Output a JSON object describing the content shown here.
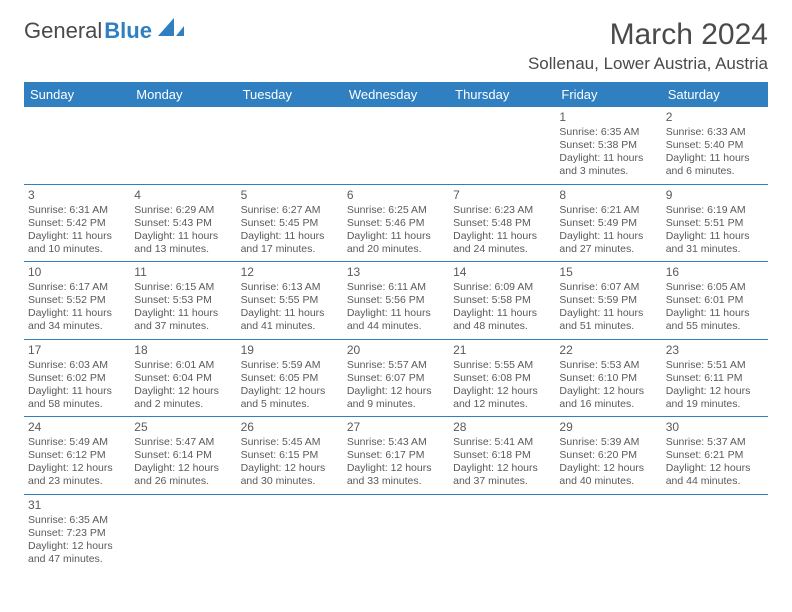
{
  "logo": {
    "text1": "General",
    "text2": "Blue"
  },
  "title": "March 2024",
  "location": "Sollenau, Lower Austria, Austria",
  "colors": {
    "header_bg": "#2f7fc1",
    "header_text": "#ffffff",
    "border": "#2f7fc1",
    "body_text": "#5a5a5a",
    "page_bg": "#ffffff"
  },
  "weekdays": [
    "Sunday",
    "Monday",
    "Tuesday",
    "Wednesday",
    "Thursday",
    "Friday",
    "Saturday"
  ],
  "weeks": [
    [
      null,
      null,
      null,
      null,
      null,
      {
        "day": "1",
        "sunrise": "Sunrise: 6:35 AM",
        "sunset": "Sunset: 5:38 PM",
        "dl1": "Daylight: 11 hours",
        "dl2": "and 3 minutes."
      },
      {
        "day": "2",
        "sunrise": "Sunrise: 6:33 AM",
        "sunset": "Sunset: 5:40 PM",
        "dl1": "Daylight: 11 hours",
        "dl2": "and 6 minutes."
      }
    ],
    [
      {
        "day": "3",
        "sunrise": "Sunrise: 6:31 AM",
        "sunset": "Sunset: 5:42 PM",
        "dl1": "Daylight: 11 hours",
        "dl2": "and 10 minutes."
      },
      {
        "day": "4",
        "sunrise": "Sunrise: 6:29 AM",
        "sunset": "Sunset: 5:43 PM",
        "dl1": "Daylight: 11 hours",
        "dl2": "and 13 minutes."
      },
      {
        "day": "5",
        "sunrise": "Sunrise: 6:27 AM",
        "sunset": "Sunset: 5:45 PM",
        "dl1": "Daylight: 11 hours",
        "dl2": "and 17 minutes."
      },
      {
        "day": "6",
        "sunrise": "Sunrise: 6:25 AM",
        "sunset": "Sunset: 5:46 PM",
        "dl1": "Daylight: 11 hours",
        "dl2": "and 20 minutes."
      },
      {
        "day": "7",
        "sunrise": "Sunrise: 6:23 AM",
        "sunset": "Sunset: 5:48 PM",
        "dl1": "Daylight: 11 hours",
        "dl2": "and 24 minutes."
      },
      {
        "day": "8",
        "sunrise": "Sunrise: 6:21 AM",
        "sunset": "Sunset: 5:49 PM",
        "dl1": "Daylight: 11 hours",
        "dl2": "and 27 minutes."
      },
      {
        "day": "9",
        "sunrise": "Sunrise: 6:19 AM",
        "sunset": "Sunset: 5:51 PM",
        "dl1": "Daylight: 11 hours",
        "dl2": "and 31 minutes."
      }
    ],
    [
      {
        "day": "10",
        "sunrise": "Sunrise: 6:17 AM",
        "sunset": "Sunset: 5:52 PM",
        "dl1": "Daylight: 11 hours",
        "dl2": "and 34 minutes."
      },
      {
        "day": "11",
        "sunrise": "Sunrise: 6:15 AM",
        "sunset": "Sunset: 5:53 PM",
        "dl1": "Daylight: 11 hours",
        "dl2": "and 37 minutes."
      },
      {
        "day": "12",
        "sunrise": "Sunrise: 6:13 AM",
        "sunset": "Sunset: 5:55 PM",
        "dl1": "Daylight: 11 hours",
        "dl2": "and 41 minutes."
      },
      {
        "day": "13",
        "sunrise": "Sunrise: 6:11 AM",
        "sunset": "Sunset: 5:56 PM",
        "dl1": "Daylight: 11 hours",
        "dl2": "and 44 minutes."
      },
      {
        "day": "14",
        "sunrise": "Sunrise: 6:09 AM",
        "sunset": "Sunset: 5:58 PM",
        "dl1": "Daylight: 11 hours",
        "dl2": "and 48 minutes."
      },
      {
        "day": "15",
        "sunrise": "Sunrise: 6:07 AM",
        "sunset": "Sunset: 5:59 PM",
        "dl1": "Daylight: 11 hours",
        "dl2": "and 51 minutes."
      },
      {
        "day": "16",
        "sunrise": "Sunrise: 6:05 AM",
        "sunset": "Sunset: 6:01 PM",
        "dl1": "Daylight: 11 hours",
        "dl2": "and 55 minutes."
      }
    ],
    [
      {
        "day": "17",
        "sunrise": "Sunrise: 6:03 AM",
        "sunset": "Sunset: 6:02 PM",
        "dl1": "Daylight: 11 hours",
        "dl2": "and 58 minutes."
      },
      {
        "day": "18",
        "sunrise": "Sunrise: 6:01 AM",
        "sunset": "Sunset: 6:04 PM",
        "dl1": "Daylight: 12 hours",
        "dl2": "and 2 minutes."
      },
      {
        "day": "19",
        "sunrise": "Sunrise: 5:59 AM",
        "sunset": "Sunset: 6:05 PM",
        "dl1": "Daylight: 12 hours",
        "dl2": "and 5 minutes."
      },
      {
        "day": "20",
        "sunrise": "Sunrise: 5:57 AM",
        "sunset": "Sunset: 6:07 PM",
        "dl1": "Daylight: 12 hours",
        "dl2": "and 9 minutes."
      },
      {
        "day": "21",
        "sunrise": "Sunrise: 5:55 AM",
        "sunset": "Sunset: 6:08 PM",
        "dl1": "Daylight: 12 hours",
        "dl2": "and 12 minutes."
      },
      {
        "day": "22",
        "sunrise": "Sunrise: 5:53 AM",
        "sunset": "Sunset: 6:10 PM",
        "dl1": "Daylight: 12 hours",
        "dl2": "and 16 minutes."
      },
      {
        "day": "23",
        "sunrise": "Sunrise: 5:51 AM",
        "sunset": "Sunset: 6:11 PM",
        "dl1": "Daylight: 12 hours",
        "dl2": "and 19 minutes."
      }
    ],
    [
      {
        "day": "24",
        "sunrise": "Sunrise: 5:49 AM",
        "sunset": "Sunset: 6:12 PM",
        "dl1": "Daylight: 12 hours",
        "dl2": "and 23 minutes."
      },
      {
        "day": "25",
        "sunrise": "Sunrise: 5:47 AM",
        "sunset": "Sunset: 6:14 PM",
        "dl1": "Daylight: 12 hours",
        "dl2": "and 26 minutes."
      },
      {
        "day": "26",
        "sunrise": "Sunrise: 5:45 AM",
        "sunset": "Sunset: 6:15 PM",
        "dl1": "Daylight: 12 hours",
        "dl2": "and 30 minutes."
      },
      {
        "day": "27",
        "sunrise": "Sunrise: 5:43 AM",
        "sunset": "Sunset: 6:17 PM",
        "dl1": "Daylight: 12 hours",
        "dl2": "and 33 minutes."
      },
      {
        "day": "28",
        "sunrise": "Sunrise: 5:41 AM",
        "sunset": "Sunset: 6:18 PM",
        "dl1": "Daylight: 12 hours",
        "dl2": "and 37 minutes."
      },
      {
        "day": "29",
        "sunrise": "Sunrise: 5:39 AM",
        "sunset": "Sunset: 6:20 PM",
        "dl1": "Daylight: 12 hours",
        "dl2": "and 40 minutes."
      },
      {
        "day": "30",
        "sunrise": "Sunrise: 5:37 AM",
        "sunset": "Sunset: 6:21 PM",
        "dl1": "Daylight: 12 hours",
        "dl2": "and 44 minutes."
      }
    ],
    [
      {
        "day": "31",
        "sunrise": "Sunrise: 6:35 AM",
        "sunset": "Sunset: 7:23 PM",
        "dl1": "Daylight: 12 hours",
        "dl2": "and 47 minutes."
      },
      null,
      null,
      null,
      null,
      null,
      null
    ]
  ]
}
